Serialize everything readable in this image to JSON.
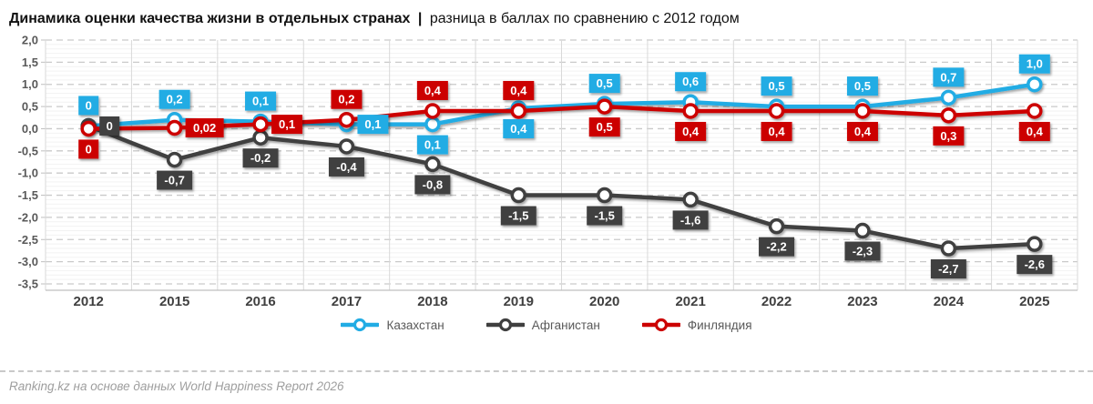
{
  "title": {
    "main": "Динамика оценки качества жизни в отдельных странах",
    "divider": "|",
    "subtitle": "разница в баллах по сравнению с 2012 годом"
  },
  "chart_data": {
    "type": "line",
    "title": "Динамика оценки качества жизни в отдельных странах | разница в баллах по сравнению с 2012 годом",
    "categories": [
      "2012",
      "2015",
      "2016",
      "2017",
      "2018",
      "2019",
      "2020",
      "2021",
      "2022",
      "2023",
      "2024",
      "2025"
    ],
    "xlabel": "",
    "ylabel": "",
    "ylim": [
      -3.5,
      2.0
    ],
    "ytick_step": 0.5,
    "ytick_labels": [
      "2,0",
      "1,5",
      "1,0",
      "0,5",
      "0,0",
      "-0,5",
      "-1,0",
      "-1,5",
      "-2,0",
      "-2,5",
      "-3,0",
      "-3,5"
    ],
    "grid": true,
    "legend_position": "bottom",
    "series": [
      {
        "name": "Казахстан",
        "color": "#21ACE4",
        "values": [
          0,
          0.2,
          0.1,
          0.1,
          0.1,
          0.4,
          0.5,
          0.6,
          0.5,
          0.5,
          0.7,
          1.0
        ],
        "labels": [
          "0",
          "0,2",
          "0,1",
          "0,1",
          "0,1",
          "0,4",
          "0,5",
          "0,6",
          "0,5",
          "0,5",
          "0,7",
          "1,0"
        ],
        "label_positions": [
          "above",
          "above",
          "above",
          "right",
          "below",
          "below",
          "above",
          "above",
          "above",
          "above",
          "above",
          "above"
        ]
      },
      {
        "name": "Афганистан",
        "color": "#3F3F3F",
        "values": [
          0,
          -0.7,
          -0.2,
          -0.4,
          -0.8,
          -1.5,
          -1.5,
          -1.6,
          -2.2,
          -2.3,
          -2.7,
          -2.6
        ],
        "labels": [
          "0",
          "-0,7",
          "-0,2",
          "-0,4",
          "-0,8",
          "-1,5",
          "-1,5",
          "-1,6",
          "-2,2",
          "-2,3",
          "-2,7",
          "-2,6"
        ],
        "label_positions": [
          "right",
          "below",
          "below",
          "below",
          "below",
          "below",
          "below",
          "below",
          "below",
          "below",
          "below",
          "below"
        ]
      },
      {
        "name": "Финляндия",
        "color": "#CC0000",
        "values": [
          0,
          0.02,
          0.1,
          0.2,
          0.4,
          0.4,
          0.5,
          0.4,
          0.4,
          0.4,
          0.3,
          0.4
        ],
        "labels": [
          "0",
          "0,02",
          "0,1",
          "0,2",
          "0,4",
          "0,4",
          "0,5",
          "0,4",
          "0,4",
          "0,4",
          "0,3",
          "0,4"
        ],
        "label_positions": [
          "below",
          "right",
          "right",
          "above",
          "above",
          "above",
          "below",
          "below",
          "below",
          "below",
          "below",
          "below"
        ]
      }
    ],
    "colors": {
      "major_grid": "#C9C9C9",
      "minor_grid": "#F2F2F2",
      "vertical_grid": "#D9D9D9",
      "axis_line": "#BFBFBF"
    }
  },
  "footer": {
    "source": "Ranking.kz на основе данных World Happiness Report 2026"
  }
}
